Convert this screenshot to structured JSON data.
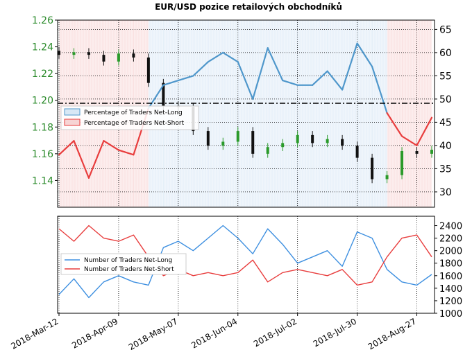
{
  "title": "EUR/USD pozice retailových obchodníků",
  "chart_data": [
    {
      "type": "line",
      "panel": "top",
      "left_axis": {
        "color": "#2a8a2a",
        "ylim": [
          1.12,
          1.26
        ],
        "ticks": [
          "1.14",
          "1.16",
          "1.18",
          "1.20",
          "1.22",
          "1.24",
          "1.26"
        ]
      },
      "right_axis": {
        "color": "#000000",
        "ylim": [
          27,
          67
        ],
        "ticks": [
          "30",
          "35",
          "40",
          "45",
          "50",
          "55",
          "60",
          "65"
        ]
      },
      "reference_line": 50,
      "legend": [
        "Percentage of Traders Net-Long",
        "Percentage of Traders Net-Short"
      ],
      "legend_placement": "center-left",
      "colors": {
        "net_long": "#4f97cb",
        "net_short": "#e83d3d",
        "long_fill": "#d8e8f5",
        "short_fill": "#f7d4d4",
        "candle_up": "#2a9a2a",
        "candle_down": "#111111"
      },
      "pct_long_weekly": [
        {
          "date": "2018-03-12",
          "value": 38
        },
        {
          "date": "2018-03-19",
          "value": 41
        },
        {
          "date": "2018-03-26",
          "value": 33
        },
        {
          "date": "2018-04-02",
          "value": 41
        },
        {
          "date": "2018-04-09",
          "value": 39
        },
        {
          "date": "2018-04-16",
          "value": 38
        },
        {
          "date": "2018-04-23",
          "value": 48
        },
        {
          "date": "2018-04-30",
          "value": 53
        },
        {
          "date": "2018-05-07",
          "value": 54
        },
        {
          "date": "2018-05-14",
          "value": 55
        },
        {
          "date": "2018-05-21",
          "value": 58
        },
        {
          "date": "2018-05-28",
          "value": 60
        },
        {
          "date": "2018-06-04",
          "value": 58
        },
        {
          "date": "2018-06-11",
          "value": 50
        },
        {
          "date": "2018-06-18",
          "value": 61
        },
        {
          "date": "2018-06-25",
          "value": 54
        },
        {
          "date": "2018-07-02",
          "value": 53
        },
        {
          "date": "2018-07-09",
          "value": 53
        },
        {
          "date": "2018-07-16",
          "value": 56
        },
        {
          "date": "2018-07-23",
          "value": 52
        },
        {
          "date": "2018-07-30",
          "value": 62
        },
        {
          "date": "2018-08-06",
          "value": 57
        },
        {
          "date": "2018-08-13",
          "value": 47
        },
        {
          "date": "2018-08-20",
          "value": 42
        },
        {
          "date": "2018-08-27",
          "value": 40
        },
        {
          "date": "2018-09-03",
          "value": 46
        }
      ],
      "eurusd_weekly_close": [
        {
          "date": "2018-03-12",
          "value": 1.234
        },
        {
          "date": "2018-03-19",
          "value": 1.236
        },
        {
          "date": "2018-03-26",
          "value": 1.234
        },
        {
          "date": "2018-04-02",
          "value": 1.229
        },
        {
          "date": "2018-04-09",
          "value": 1.235
        },
        {
          "date": "2018-04-16",
          "value": 1.232
        },
        {
          "date": "2018-04-23",
          "value": 1.213
        },
        {
          "date": "2018-04-30",
          "value": 1.196
        },
        {
          "date": "2018-05-07",
          "value": 1.195
        },
        {
          "date": "2018-05-14",
          "value": 1.177
        },
        {
          "date": "2018-05-21",
          "value": 1.166
        },
        {
          "date": "2018-05-28",
          "value": 1.169
        },
        {
          "date": "2018-06-04",
          "value": 1.177
        },
        {
          "date": "2018-06-11",
          "value": 1.16
        },
        {
          "date": "2018-06-18",
          "value": 1.165
        },
        {
          "date": "2018-06-25",
          "value": 1.168
        },
        {
          "date": "2018-07-02",
          "value": 1.174
        },
        {
          "date": "2018-07-09",
          "value": 1.168
        },
        {
          "date": "2018-07-16",
          "value": 1.171
        },
        {
          "date": "2018-07-23",
          "value": 1.166
        },
        {
          "date": "2018-07-30",
          "value": 1.157
        },
        {
          "date": "2018-08-06",
          "value": 1.141
        },
        {
          "date": "2018-08-13",
          "value": 1.144
        },
        {
          "date": "2018-08-20",
          "value": 1.162
        },
        {
          "date": "2018-08-27",
          "value": 1.16
        },
        {
          "date": "2018-09-03",
          "value": 1.163
        }
      ]
    },
    {
      "type": "line",
      "panel": "bottom",
      "ylim": [
        1000,
        2550
      ],
      "yticks": [
        "1000",
        "1200",
        "1400",
        "1600",
        "1800",
        "2000",
        "2200",
        "2400"
      ],
      "xticks": [
        "2018-Mar-12",
        "2018-Apr-09",
        "2018-May-07",
        "2018-Jun-04",
        "2018-Jul-02",
        "2018-Jul-30",
        "2018-Aug-27"
      ],
      "legend": [
        "Number of Traders Net-Long",
        "Number of Traders Net-Short"
      ],
      "legend_placement": "center-left",
      "series": [
        {
          "name": "Number of Traders Net-Long",
          "color": "#3d8fe0",
          "values": [
            {
              "date": "2018-03-12",
              "value": 1300
            },
            {
              "date": "2018-03-19",
              "value": 1550
            },
            {
              "date": "2018-03-26",
              "value": 1250
            },
            {
              "date": "2018-04-02",
              "value": 1500
            },
            {
              "date": "2018-04-09",
              "value": 1600
            },
            {
              "date": "2018-04-16",
              "value": 1500
            },
            {
              "date": "2018-04-23",
              "value": 1450
            },
            {
              "date": "2018-04-30",
              "value": 2050
            },
            {
              "date": "2018-05-07",
              "value": 2150
            },
            {
              "date": "2018-05-14",
              "value": 2000
            },
            {
              "date": "2018-05-21",
              "value": 2200
            },
            {
              "date": "2018-05-28",
              "value": 2400
            },
            {
              "date": "2018-06-04",
              "value": 2200
            },
            {
              "date": "2018-06-11",
              "value": 1950
            },
            {
              "date": "2018-06-18",
              "value": 2350
            },
            {
              "date": "2018-06-25",
              "value": 2100
            },
            {
              "date": "2018-07-02",
              "value": 1800
            },
            {
              "date": "2018-07-09",
              "value": 1900
            },
            {
              "date": "2018-07-16",
              "value": 2000
            },
            {
              "date": "2018-07-23",
              "value": 1750
            },
            {
              "date": "2018-07-30",
              "value": 2300
            },
            {
              "date": "2018-08-06",
              "value": 2200
            },
            {
              "date": "2018-08-13",
              "value": 1700
            },
            {
              "date": "2018-08-20",
              "value": 1500
            },
            {
              "date": "2018-08-27",
              "value": 1450
            },
            {
              "date": "2018-09-03",
              "value": 1620
            }
          ]
        },
        {
          "name": "Number of Traders Net-Short",
          "color": "#e83d3d",
          "values": [
            {
              "date": "2018-03-12",
              "value": 2350
            },
            {
              "date": "2018-03-19",
              "value": 2150
            },
            {
              "date": "2018-03-26",
              "value": 2400
            },
            {
              "date": "2018-04-02",
              "value": 2200
            },
            {
              "date": "2018-04-09",
              "value": 2150
            },
            {
              "date": "2018-04-16",
              "value": 2250
            },
            {
              "date": "2018-04-23",
              "value": 1900
            },
            {
              "date": "2018-04-30",
              "value": 1600
            },
            {
              "date": "2018-05-07",
              "value": 1700
            },
            {
              "date": "2018-05-14",
              "value": 1600
            },
            {
              "date": "2018-05-21",
              "value": 1650
            },
            {
              "date": "2018-05-28",
              "value": 1600
            },
            {
              "date": "2018-06-04",
              "value": 1650
            },
            {
              "date": "2018-06-11",
              "value": 1850
            },
            {
              "date": "2018-06-18",
              "value": 1500
            },
            {
              "date": "2018-06-25",
              "value": 1650
            },
            {
              "date": "2018-07-02",
              "value": 1700
            },
            {
              "date": "2018-07-09",
              "value": 1650
            },
            {
              "date": "2018-07-16",
              "value": 1600
            },
            {
              "date": "2018-07-23",
              "value": 1700
            },
            {
              "date": "2018-07-30",
              "value": 1450
            },
            {
              "date": "2018-08-06",
              "value": 1500
            },
            {
              "date": "2018-08-13",
              "value": 1900
            },
            {
              "date": "2018-08-20",
              "value": 2200
            },
            {
              "date": "2018-08-27",
              "value": 2250
            },
            {
              "date": "2018-09-03",
              "value": 1900
            }
          ]
        }
      ]
    }
  ]
}
